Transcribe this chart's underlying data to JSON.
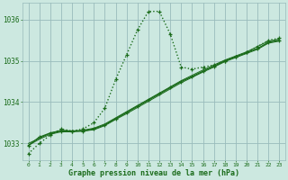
{
  "background_color": "#cce8e0",
  "grid_color": "#99bbbb",
  "line_color": "#1a6b1a",
  "title": "Graphe pression niveau de la mer (hPa)",
  "hours": [
    0,
    1,
    2,
    3,
    4,
    5,
    6,
    7,
    8,
    9,
    10,
    11,
    12,
    13,
    14,
    15,
    16,
    17,
    18,
    19,
    20,
    21,
    22,
    23
  ],
  "series1": [
    1032.75,
    1033.0,
    1033.2,
    1033.35,
    1033.3,
    1033.35,
    1033.5,
    1033.85,
    1034.55,
    1035.15,
    1035.75,
    1036.2,
    1036.2,
    1035.65,
    1034.85,
    1034.8,
    1034.85,
    1034.9,
    1035.0,
    1035.1,
    1035.2,
    1035.35,
    1035.5,
    1035.55
  ],
  "series2": [
    1032.95,
    1033.15,
    1033.25,
    1033.3,
    1033.3,
    1033.3,
    1033.35,
    1033.45,
    1033.6,
    1033.75,
    1033.9,
    1034.05,
    1034.2,
    1034.35,
    1034.5,
    1034.62,
    1034.75,
    1034.87,
    1035.0,
    1035.1,
    1035.2,
    1035.3,
    1035.45,
    1035.5
  ],
  "series3": [
    1032.95,
    1033.1,
    1033.22,
    1033.28,
    1033.28,
    1033.3,
    1033.33,
    1033.43,
    1033.58,
    1033.72,
    1033.87,
    1034.02,
    1034.17,
    1034.32,
    1034.47,
    1034.6,
    1034.73,
    1034.85,
    1034.98,
    1035.08,
    1035.18,
    1035.28,
    1035.43,
    1035.48
  ],
  "series4": [
    1033.0,
    1033.12,
    1033.25,
    1033.32,
    1033.3,
    1033.32,
    1033.37,
    1033.47,
    1033.62,
    1033.77,
    1033.92,
    1034.07,
    1034.22,
    1034.37,
    1034.52,
    1034.65,
    1034.78,
    1034.9,
    1035.02,
    1035.12,
    1035.22,
    1035.35,
    1035.48,
    1035.53
  ],
  "ylim": [
    1032.6,
    1036.4
  ],
  "yticks": [
    1033,
    1034,
    1035,
    1036
  ],
  "xtick_fontsize": 4.5,
  "ytick_fontsize": 5.5,
  "title_fontsize": 6.0
}
